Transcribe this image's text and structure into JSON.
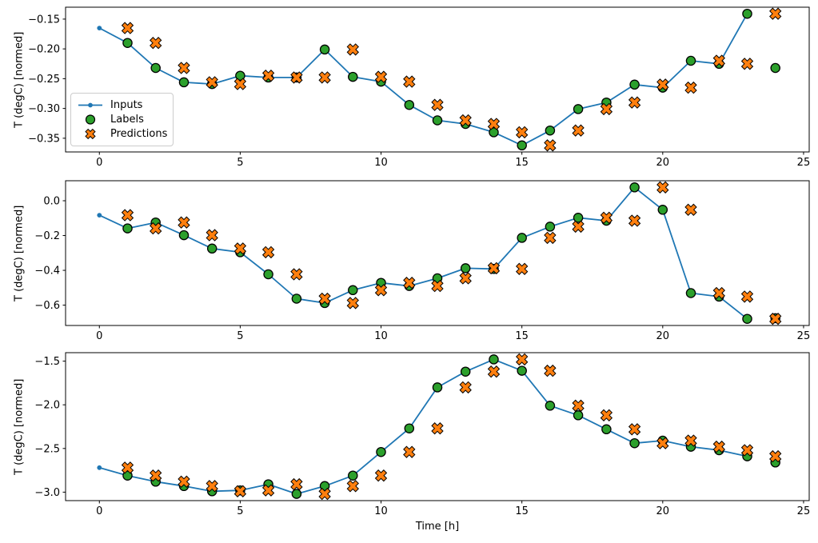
{
  "figure": {
    "background": "#ffffff",
    "spine_color": "#000000",
    "tick_font_px": 13
  },
  "legend": {
    "position": "upper-left-of-first-subplot",
    "entries": [
      "Inputs",
      "Labels",
      "Predictions"
    ]
  },
  "chart_data": [
    {
      "type": "line",
      "title": "",
      "xlabel": "",
      "ylabel": "T (degC) [normed]",
      "xlim": [
        -1.2,
        25.2
      ],
      "ylim": [
        -0.373,
        -0.13
      ],
      "xticks": [
        0,
        5,
        10,
        15,
        20,
        25
      ],
      "xtick_labels": [
        "0",
        "5",
        "10",
        "15",
        "20",
        "25"
      ],
      "yticks": [
        -0.15,
        -0.2,
        -0.25,
        -0.3,
        -0.35
      ],
      "ytick_labels": [
        "−0.15",
        "−0.20",
        "−0.25",
        "−0.30",
        "−0.35"
      ],
      "grid": false,
      "legend_visible": true,
      "series": [
        {
          "name": "Inputs",
          "type": "line",
          "marker": "dot",
          "color": "#1f77b4",
          "x": [
            0,
            1,
            2,
            3,
            4,
            5,
            6,
            7,
            8,
            9,
            10,
            11,
            12,
            13,
            14,
            15,
            16,
            17,
            18,
            19,
            20,
            21,
            22,
            23
          ],
          "y": [
            -0.165,
            -0.19,
            -0.232,
            -0.256,
            -0.259,
            -0.245,
            -0.248,
            -0.248,
            -0.201,
            -0.247,
            -0.255,
            -0.294,
            -0.32,
            -0.326,
            -0.34,
            -0.362,
            -0.337,
            -0.301,
            -0.29,
            -0.26,
            -0.265,
            -0.22,
            -0.225,
            -0.141
          ]
        },
        {
          "name": "Labels",
          "type": "scatter",
          "marker": "circle",
          "color": "#2ca02c",
          "edge": "#000000",
          "x": [
            1,
            2,
            3,
            4,
            5,
            6,
            7,
            8,
            9,
            10,
            11,
            12,
            13,
            14,
            15,
            16,
            17,
            18,
            19,
            20,
            21,
            22,
            23,
            24
          ],
          "y": [
            -0.19,
            -0.232,
            -0.256,
            -0.259,
            -0.245,
            -0.248,
            -0.248,
            -0.201,
            -0.247,
            -0.255,
            -0.294,
            -0.32,
            -0.326,
            -0.34,
            -0.362,
            -0.337,
            -0.301,
            -0.29,
            -0.26,
            -0.265,
            -0.22,
            -0.225,
            -0.141,
            -0.232
          ]
        },
        {
          "name": "Predictions",
          "type": "scatter",
          "marker": "X",
          "color": "#ff7f0e",
          "edge": "#000000",
          "x": [
            1,
            2,
            3,
            4,
            5,
            6,
            7,
            8,
            9,
            10,
            11,
            12,
            13,
            14,
            15,
            16,
            17,
            18,
            19,
            20,
            21,
            22,
            23,
            24
          ],
          "y": [
            -0.165,
            -0.19,
            -0.232,
            -0.256,
            -0.259,
            -0.245,
            -0.248,
            -0.248,
            -0.201,
            -0.247,
            -0.255,
            -0.294,
            -0.32,
            -0.326,
            -0.34,
            -0.362,
            -0.337,
            -0.301,
            -0.29,
            -0.26,
            -0.265,
            -0.22,
            -0.225,
            -0.141
          ]
        }
      ]
    },
    {
      "type": "line",
      "title": "",
      "xlabel": "",
      "ylabel": "T (degC) [normed]",
      "xlim": [
        -1.2,
        25.2
      ],
      "ylim": [
        -0.717,
        0.115
      ],
      "xticks": [
        0,
        5,
        10,
        15,
        20,
        25
      ],
      "xtick_labels": [
        "0",
        "5",
        "10",
        "15",
        "20",
        "25"
      ],
      "yticks": [
        0.0,
        -0.2,
        -0.4,
        -0.6
      ],
      "ytick_labels": [
        "0.0",
        "−0.2",
        "−0.4",
        "−0.6"
      ],
      "grid": false,
      "legend_visible": false,
      "series": [
        {
          "name": "Inputs",
          "type": "line",
          "marker": "dot",
          "color": "#1f77b4",
          "x": [
            0,
            1,
            2,
            3,
            4,
            5,
            6,
            7,
            8,
            9,
            10,
            11,
            12,
            13,
            14,
            15,
            16,
            17,
            18,
            19,
            20,
            21,
            22,
            23
          ],
          "y": [
            -0.083,
            -0.159,
            -0.125,
            -0.198,
            -0.275,
            -0.296,
            -0.423,
            -0.563,
            -0.588,
            -0.514,
            -0.472,
            -0.49,
            -0.446,
            -0.388,
            -0.392,
            -0.213,
            -0.149,
            -0.098,
            -0.115,
            0.077,
            -0.052,
            -0.531,
            -0.551,
            -0.679
          ]
        },
        {
          "name": "Labels",
          "type": "scatter",
          "marker": "circle",
          "color": "#2ca02c",
          "edge": "#000000",
          "x": [
            1,
            2,
            3,
            4,
            5,
            6,
            7,
            8,
            9,
            10,
            11,
            12,
            13,
            14,
            15,
            16,
            17,
            18,
            19,
            20,
            21,
            22,
            23,
            24
          ],
          "y": [
            -0.159,
            -0.125,
            -0.198,
            -0.275,
            -0.296,
            -0.423,
            -0.563,
            -0.588,
            -0.514,
            -0.472,
            -0.49,
            -0.446,
            -0.388,
            -0.392,
            -0.213,
            -0.149,
            -0.098,
            -0.115,
            0.077,
            -0.052,
            -0.531,
            -0.551,
            -0.679,
            -0.675
          ]
        },
        {
          "name": "Predictions",
          "type": "scatter",
          "marker": "X",
          "color": "#ff7f0e",
          "edge": "#000000",
          "x": [
            1,
            2,
            3,
            4,
            5,
            6,
            7,
            8,
            9,
            10,
            11,
            12,
            13,
            14,
            15,
            16,
            17,
            18,
            19,
            20,
            21,
            22,
            23,
            24
          ],
          "y": [
            -0.083,
            -0.159,
            -0.125,
            -0.198,
            -0.275,
            -0.296,
            -0.423,
            -0.563,
            -0.588,
            -0.514,
            -0.472,
            -0.49,
            -0.446,
            -0.388,
            -0.392,
            -0.213,
            -0.149,
            -0.098,
            -0.115,
            0.077,
            -0.052,
            -0.531,
            -0.551,
            -0.679
          ]
        }
      ]
    },
    {
      "type": "line",
      "title": "",
      "xlabel": "Time [h]",
      "ylabel": "T (degC) [normed]",
      "xlim": [
        -1.2,
        25.2
      ],
      "ylim": [
        -3.097,
        -1.403
      ],
      "xticks": [
        0,
        5,
        10,
        15,
        20,
        25
      ],
      "xtick_labels": [
        "0",
        "5",
        "10",
        "15",
        "20",
        "25"
      ],
      "yticks": [
        -1.5,
        -2.0,
        -2.5,
        -3.0
      ],
      "ytick_labels": [
        "−1.5",
        "−2.0",
        "−2.5",
        "−3.0"
      ],
      "grid": false,
      "legend_visible": false,
      "series": [
        {
          "name": "Inputs",
          "type": "line",
          "marker": "dot",
          "color": "#1f77b4",
          "x": [
            0,
            1,
            2,
            3,
            4,
            5,
            6,
            7,
            8,
            9,
            10,
            11,
            12,
            13,
            14,
            15,
            16,
            17,
            18,
            19,
            20,
            21,
            22,
            23
          ],
          "y": [
            -2.72,
            -2.81,
            -2.88,
            -2.93,
            -2.99,
            -2.98,
            -2.91,
            -3.02,
            -2.93,
            -2.81,
            -2.54,
            -2.27,
            -1.8,
            -1.62,
            -1.48,
            -1.61,
            -2.01,
            -2.12,
            -2.28,
            -2.44,
            -2.41,
            -2.48,
            -2.52,
            -2.59
          ]
        },
        {
          "name": "Labels",
          "type": "scatter",
          "marker": "circle",
          "color": "#2ca02c",
          "edge": "#000000",
          "x": [
            1,
            2,
            3,
            4,
            5,
            6,
            7,
            8,
            9,
            10,
            11,
            12,
            13,
            14,
            15,
            16,
            17,
            18,
            19,
            20,
            21,
            22,
            23,
            24
          ],
          "y": [
            -2.81,
            -2.88,
            -2.93,
            -2.99,
            -2.98,
            -2.91,
            -3.02,
            -2.93,
            -2.81,
            -2.54,
            -2.27,
            -1.8,
            -1.62,
            -1.48,
            -1.61,
            -2.01,
            -2.12,
            -2.28,
            -2.44,
            -2.41,
            -2.48,
            -2.52,
            -2.59,
            -2.66
          ]
        },
        {
          "name": "Predictions",
          "type": "scatter",
          "marker": "X",
          "color": "#ff7f0e",
          "edge": "#000000",
          "x": [
            1,
            2,
            3,
            4,
            5,
            6,
            7,
            8,
            9,
            10,
            11,
            12,
            13,
            14,
            15,
            16,
            17,
            18,
            19,
            20,
            21,
            22,
            23,
            24
          ],
          "y": [
            -2.72,
            -2.81,
            -2.88,
            -2.93,
            -2.99,
            -2.98,
            -2.91,
            -3.02,
            -2.93,
            -2.81,
            -2.54,
            -2.27,
            -1.8,
            -1.62,
            -1.48,
            -1.61,
            -2.01,
            -2.12,
            -2.28,
            -2.44,
            -2.41,
            -2.48,
            -2.52,
            -2.59
          ]
        }
      ]
    }
  ]
}
